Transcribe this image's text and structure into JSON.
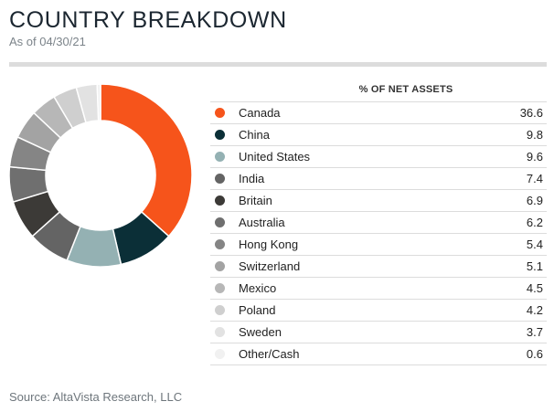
{
  "header": {
    "title": "COUNTRY BREAKDOWN",
    "subtitle": "As of 04/30/21"
  },
  "table": {
    "column_header": "% OF NET ASSETS"
  },
  "footer": {
    "source": "Source: AltaVista Research, LLC"
  },
  "chart_data": {
    "type": "pie",
    "donut": true,
    "title": "COUNTRY BREAKDOWN",
    "subtitle": "As of 04/30/21",
    "value_label": "% OF NET ASSETS",
    "categories": [
      "Canada",
      "China",
      "United States",
      "India",
      "Britain",
      "Australia",
      "Hong Kong",
      "Switzerland",
      "Mexico",
      "Poland",
      "Sweden",
      "Other/Cash"
    ],
    "values": [
      36.6,
      9.8,
      9.6,
      7.4,
      6.9,
      6.2,
      5.4,
      5.1,
      4.5,
      4.2,
      3.7,
      0.6
    ],
    "colors": [
      "#f6541b",
      "#0b2f37",
      "#94b1b3",
      "#646464",
      "#3c3a37",
      "#6f6f6f",
      "#858585",
      "#a3a3a3",
      "#b7b7b7",
      "#cfcfcf",
      "#e2e2e2",
      "#f1f1f1"
    ],
    "legend_position": "right"
  }
}
